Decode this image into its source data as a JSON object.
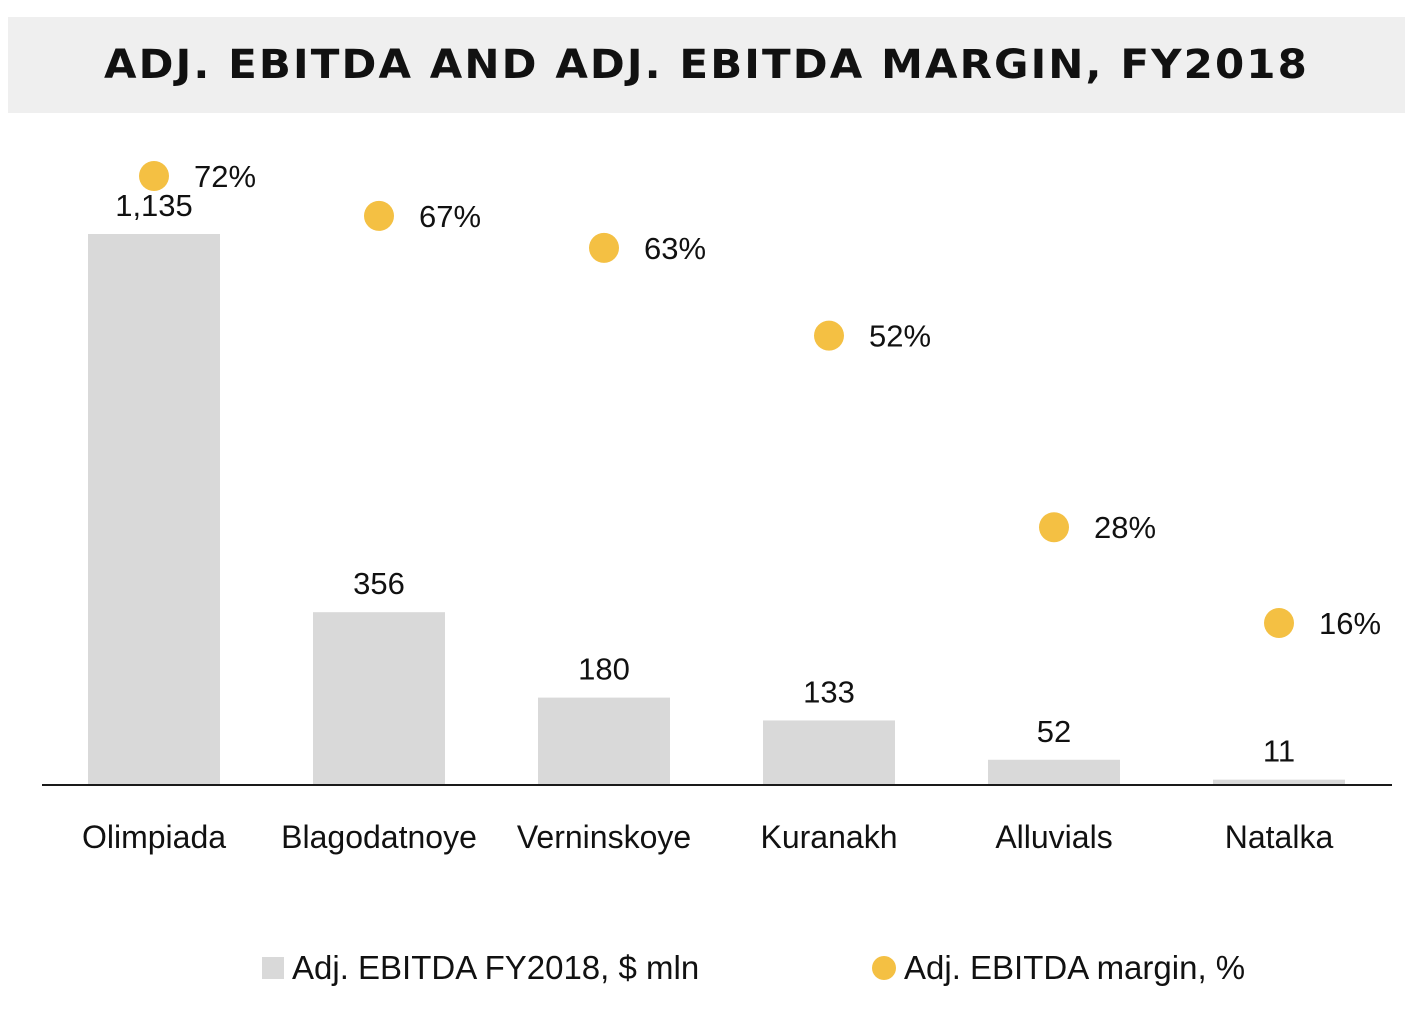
{
  "title": "ADJ. EBITDA AND ADJ. EBITDA MARGIN, FY2018",
  "colors": {
    "bar": "#d9d9d9",
    "dot": "#f4c043",
    "axis": "#1a1a1a",
    "title_band": "#efefef"
  },
  "chart_data": {
    "type": "bar",
    "title": "ADJ. EBITDA AND ADJ. EBITDA MARGIN, FY2018",
    "categories": [
      "Olimpiada",
      "Blagodatnoye",
      "Verninskoye",
      "Kuranakh",
      "Alluvials",
      "Natalka"
    ],
    "series": [
      {
        "name": "Adj. EBITDA FY2018, $ mln",
        "type": "bar",
        "values": [
          1135,
          356,
          180,
          133,
          52,
          11
        ],
        "labels": [
          "1,135",
          "356",
          "180",
          "133",
          "52",
          "11"
        ]
      },
      {
        "name": "Adj. EBITDA margin, %",
        "type": "scatter",
        "values": [
          72,
          67,
          63,
          52,
          28,
          16
        ],
        "labels": [
          "72%",
          "67%",
          "63%",
          "52%",
          "28%",
          "16%"
        ]
      }
    ],
    "ylim": [
      0,
      1135
    ],
    "margin_ylim": [
      0,
      72
    ],
    "legend_position": "bottom",
    "grid": false
  },
  "legend": {
    "bar_label": "Adj. EBITDA FY2018, $ mln",
    "dot_label": "Adj. EBITDA margin, %"
  }
}
